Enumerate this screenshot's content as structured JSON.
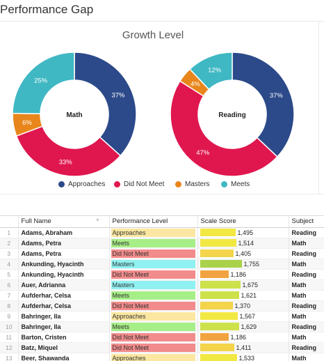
{
  "page_title": "Performance Gap",
  "chart_title": "Growth Level",
  "colors": {
    "approaches": "#2c4a8a",
    "did_not_meet": "#e0174f",
    "masters": "#e8861b",
    "meets": "#3fb8c4"
  },
  "chart_data": [
    {
      "type": "pie",
      "center_label": "Math",
      "categories": [
        "Approaches",
        "Did Not Meet",
        "Masters",
        "Meets"
      ],
      "values": [
        37,
        33,
        6,
        25
      ],
      "labels": [
        "37%",
        "33%",
        "6%",
        "25%"
      ]
    },
    {
      "type": "pie",
      "center_label": "Reading",
      "categories": [
        "Approaches",
        "Did Not Meet",
        "Masters",
        "Meets"
      ],
      "values": [
        37,
        47,
        4,
        12
      ],
      "labels": [
        "37%",
        "47%",
        "4%",
        "12%"
      ]
    }
  ],
  "legend": [
    {
      "label": "Approaches",
      "color": "#2c4a8a"
    },
    {
      "label": "Did Not Meet",
      "color": "#e0174f"
    },
    {
      "label": "Masters",
      "color": "#e8861b"
    },
    {
      "label": "Meets",
      "color": "#3fb8c4"
    }
  ],
  "table": {
    "headers": {
      "name": "Full Name",
      "perf": "Performance Level",
      "score": "Scale Score",
      "subject": "Subject"
    },
    "sort_icon": "chevron-up-icon",
    "score_max": 1800,
    "rows": [
      {
        "num": "1",
        "name": "Adams, Abraham",
        "perf": "Approaches",
        "score": "1,495",
        "score_value": 1495,
        "subject": "Reading"
      },
      {
        "num": "2",
        "name": "Adams, Petra",
        "perf": "Meets",
        "score": "1,514",
        "score_value": 1514,
        "subject": "Math"
      },
      {
        "num": "3",
        "name": "Adams, Petra",
        "perf": "Did Not Meet",
        "score": "1,405",
        "score_value": 1405,
        "subject": "Reading"
      },
      {
        "num": "4",
        "name": "Ankunding, Hyacinth",
        "perf": "Masters",
        "score": "1,755",
        "score_value": 1755,
        "subject": "Math"
      },
      {
        "num": "5",
        "name": "Ankunding, Hyacinth",
        "perf": "Did Not Meet",
        "score": "1,186",
        "score_value": 1186,
        "subject": "Reading"
      },
      {
        "num": "6",
        "name": "Auer, Adrianna",
        "perf": "Masters",
        "score": "1,675",
        "score_value": 1675,
        "subject": "Math"
      },
      {
        "num": "7",
        "name": "Aufderhar, Celsa",
        "perf": "Meets",
        "score": "1,621",
        "score_value": 1621,
        "subject": "Math"
      },
      {
        "num": "8",
        "name": "Aufderhar, Celsa",
        "perf": "Did Not Meet",
        "score": "1,370",
        "score_value": 1370,
        "subject": "Reading"
      },
      {
        "num": "9",
        "name": "Bahringer, Ila",
        "perf": "Approaches",
        "score": "1,567",
        "score_value": 1567,
        "subject": "Math"
      },
      {
        "num": "10",
        "name": "Bahringer, Ila",
        "perf": "Meets",
        "score": "1,629",
        "score_value": 1629,
        "subject": "Reading"
      },
      {
        "num": "11",
        "name": "Barton, Cristen",
        "perf": "Did Not Meet",
        "score": "1,186",
        "score_value": 1186,
        "subject": "Math"
      },
      {
        "num": "12",
        "name": "Batz, Miquel",
        "perf": "Did Not Meet",
        "score": "1,411",
        "score_value": 1411,
        "subject": "Reading"
      },
      {
        "num": "13",
        "name": "Beer, Shawanda",
        "perf": "Approaches",
        "score": "1,533",
        "score_value": 1533,
        "subject": "Math"
      }
    ]
  }
}
